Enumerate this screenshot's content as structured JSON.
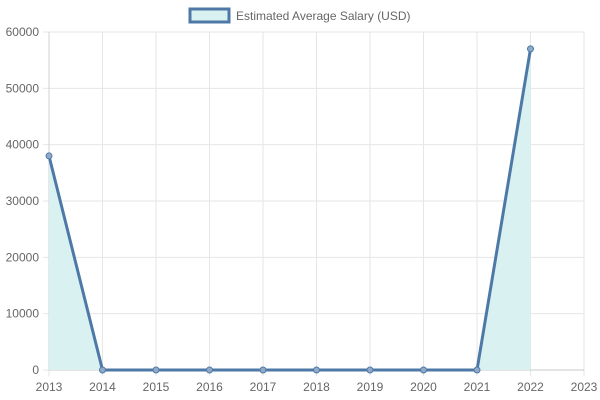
{
  "chart_data": {
    "type": "line",
    "x": [
      "2013",
      "2014",
      "2015",
      "2016",
      "2017",
      "2018",
      "2019",
      "2020",
      "2021",
      "2022",
      "2023"
    ],
    "series": [
      {
        "name": "Estimated Average Salary (USD)",
        "values": [
          38000,
          0,
          0,
          0,
          0,
          0,
          0,
          0,
          0,
          57000,
          null
        ],
        "color": "#4e79a7",
        "fill": "#d9f1f1"
      }
    ],
    "ylim": [
      0,
      60000
    ],
    "yticks": [
      "0",
      "10000",
      "20000",
      "30000",
      "40000",
      "50000",
      "60000"
    ],
    "grid": true,
    "legend_position": "top-center",
    "title": "",
    "xlabel": "",
    "ylabel": ""
  }
}
